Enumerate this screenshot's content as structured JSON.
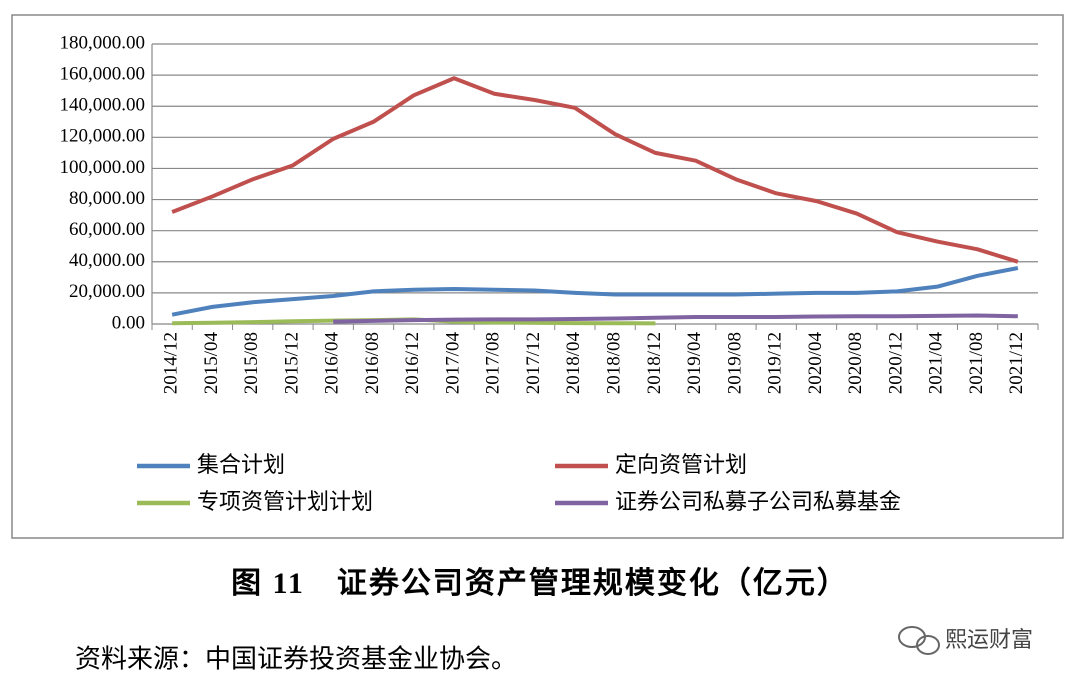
{
  "chart_data": {
    "type": "line",
    "categories": [
      "2014/12",
      "2015/04",
      "2015/08",
      "2015/12",
      "2016/04",
      "2016/08",
      "2016/12",
      "2017/04",
      "2017/08",
      "2017/12",
      "2018/04",
      "2018/08",
      "2018/12",
      "2019/04",
      "2019/08",
      "2019/12",
      "2020/04",
      "2020/08",
      "2020/12",
      "2021/04",
      "2021/08",
      "2021/12"
    ],
    "series": [
      {
        "name": "集合计划",
        "color": "#4f81bd",
        "values": [
          6000,
          11000,
          14000,
          16000,
          18000,
          21000,
          22000,
          22500,
          22000,
          21500,
          20000,
          19000,
          19000,
          19000,
          19000,
          19500,
          20000,
          20000,
          21000,
          24000,
          31000,
          36000
        ]
      },
      {
        "name": "定向资管计划",
        "color": "#c0504d",
        "values": [
          72000,
          82000,
          93000,
          102000,
          119000,
          130000,
          147000,
          158000,
          148000,
          144000,
          139000,
          122000,
          110000,
          105000,
          93000,
          84000,
          79000,
          71000,
          59000,
          53000,
          48000,
          40000
        ]
      },
      {
        "name": "专项资管计划计划",
        "color": "#9bbb59",
        "values": [
          500,
          800,
          1200,
          1800,
          2200,
          2500,
          3000,
          1500,
          1000,
          800,
          600,
          500,
          400,
          null,
          null,
          null,
          null,
          null,
          null,
          null,
          null,
          null
        ]
      },
      {
        "name": "证券公司私募子公司私募基金",
        "color": "#8064a2",
        "values": [
          null,
          null,
          null,
          null,
          1500,
          2000,
          2500,
          2800,
          3000,
          3000,
          3200,
          3500,
          4000,
          4500,
          4500,
          4500,
          4800,
          5000,
          5000,
          5200,
          5500,
          5000
        ]
      }
    ],
    "ylim": [
      0,
      180000
    ],
    "yticks": [
      {
        "value": 0,
        "label": "0.00"
      },
      {
        "value": 20000,
        "label": "20,000.00"
      },
      {
        "value": 40000,
        "label": "40,000.00"
      },
      {
        "value": 60000,
        "label": "60,000.00"
      },
      {
        "value": 80000,
        "label": "80,000.00"
      },
      {
        "value": 100000,
        "label": "100,000.00"
      },
      {
        "value": 120000,
        "label": "120,000.00"
      },
      {
        "value": 140000,
        "label": "140,000.00"
      },
      {
        "value": 160000,
        "label": "160,000.00"
      },
      {
        "value": 180000,
        "label": "180,000.00"
      }
    ],
    "grid": true,
    "legend": "bottom",
    "caption": "图 11　证券公司资产管理规模变化（亿元）",
    "source": "资料来源：中国证券投资基金业协会。",
    "watermark": "熙运财富"
  }
}
